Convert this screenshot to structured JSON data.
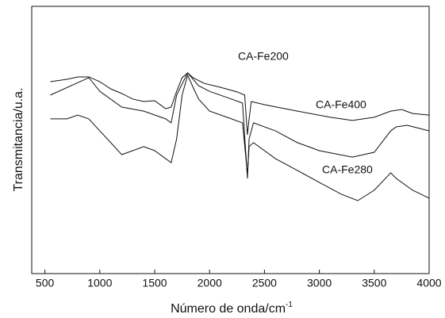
{
  "chart_data": {
    "type": "line",
    "x_label": "Número de onda/cm",
    "x_label_sup": "-1",
    "y_label": "Transmitancia/u.a.",
    "xlim": [
      380,
      4000
    ],
    "xticks": [
      500,
      1000,
      1500,
      2000,
      2500,
      3000,
      3500,
      4000
    ],
    "ylim": [
      0,
      100
    ],
    "series": [
      {
        "name": "CA-Fe200",
        "color": "#111111",
        "x": [
          550,
          900,
          1000,
          1200,
          1400,
          1600,
          1650,
          1700,
          1800,
          1900,
          2000,
          2200,
          2300,
          2345,
          2360,
          2400,
          2600,
          2800,
          3000,
          3300,
          3500,
          3650,
          3700,
          3800,
          4000
        ],
        "values": [
          66.8,
          73.3,
          68.2,
          62.3,
          60.8,
          57.9,
          56.4,
          66.8,
          75.1,
          70.3,
          68.2,
          65.3,
          63.8,
          35.6,
          50.4,
          56.4,
          53.4,
          49.0,
          46.0,
          43.6,
          45.4,
          53.4,
          54.9,
          55.5,
          53.4
        ]
      },
      {
        "name": "CA-Fe400",
        "color": "#111111",
        "x": [
          550,
          700,
          800,
          900,
          1000,
          1100,
          1200,
          1300,
          1400,
          1500,
          1600,
          1650,
          1700,
          1750,
          1800,
          1850,
          1950,
          2100,
          2250,
          2320,
          2345,
          2360,
          2380,
          2500,
          2800,
          3100,
          3300,
          3500,
          3650,
          3750,
          3850,
          4000
        ],
        "values": [
          71.8,
          72.7,
          73.6,
          73.6,
          71.8,
          69.1,
          67.4,
          65.3,
          64.4,
          64.7,
          61.7,
          62.3,
          68.2,
          73.3,
          75.1,
          73.3,
          71.2,
          69.7,
          68.0,
          66.8,
          51.9,
          57.9,
          64.4,
          63.2,
          60.8,
          58.5,
          57.3,
          58.5,
          60.8,
          61.4,
          59.9,
          59.3
        ]
      },
      {
        "name": "CA-Fe280",
        "color": "#111111",
        "x": [
          550,
          700,
          800,
          900,
          1000,
          1100,
          1200,
          1300,
          1400,
          1500,
          1600,
          1650,
          1700,
          1750,
          1800,
          1850,
          1900,
          2000,
          2200,
          2300,
          2345,
          2360,
          2400,
          2600,
          2800,
          3000,
          3200,
          3350,
          3500,
          3650,
          3700,
          3850,
          4000
        ],
        "values": [
          57.9,
          57.9,
          59.3,
          57.9,
          53.4,
          49.0,
          44.5,
          46.0,
          47.5,
          46.0,
          43.0,
          41.5,
          50.4,
          66.8,
          74.2,
          69.7,
          65.3,
          60.8,
          57.9,
          56.4,
          37.1,
          47.5,
          49.0,
          43.0,
          38.6,
          34.1,
          29.7,
          27.3,
          31.2,
          37.7,
          35.6,
          31.2,
          28.2
        ]
      }
    ]
  }
}
